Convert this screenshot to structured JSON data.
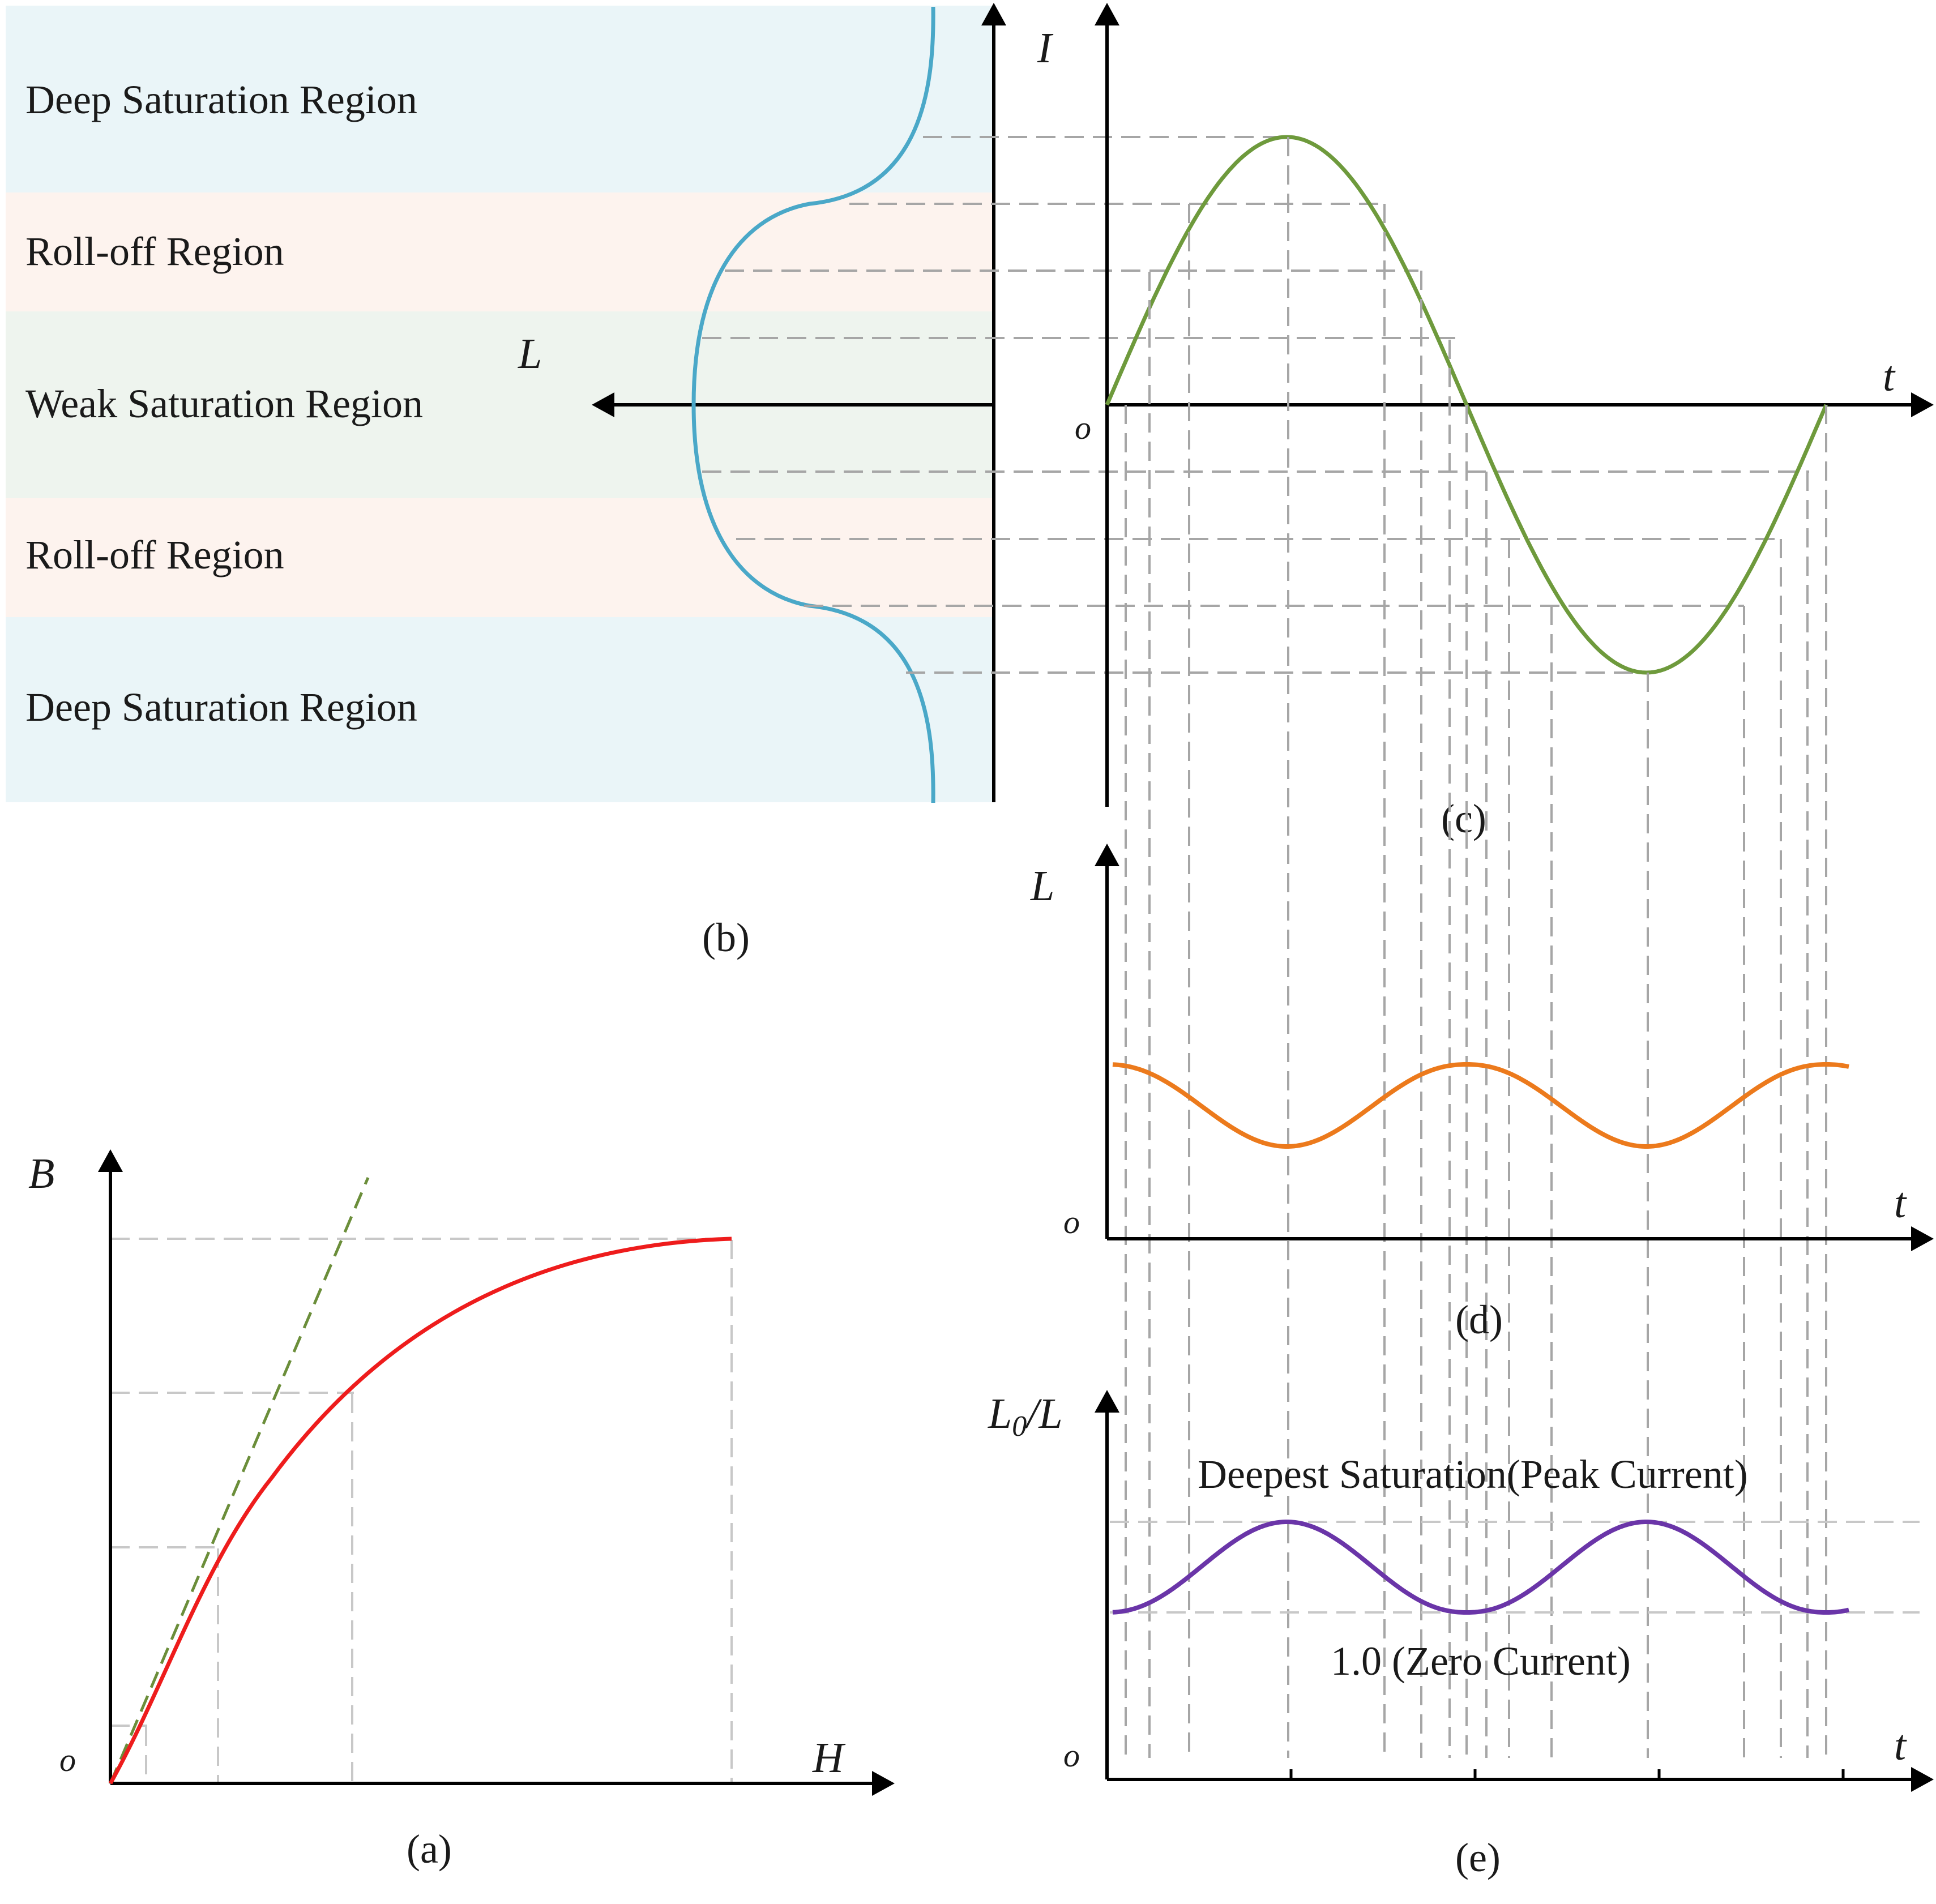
{
  "colors": {
    "deep_band": "#eaf5f8",
    "rolloff_band": "#fdf3ee",
    "weak_band": "#eef4ee",
    "bh_curve": "#ee1c1c",
    "bh_tangent": "#6b8e3a",
    "inductance_curve": "#4aa8c8",
    "current_wave": "#6e9a3c",
    "inductance_wave": "#ec7a1c",
    "ratio_wave": "#6a35a8",
    "guide_lines": "#a6a6a6"
  },
  "panel_b": {
    "regions": [
      "Deep Saturation Region",
      "Roll-off Region",
      "Weak Saturation Region",
      "Roll-off Region",
      "Deep Saturation Region"
    ],
    "axis_label": "L",
    "caption": "(b)"
  },
  "panel_a": {
    "y_label": "B",
    "x_label": "H",
    "origin": "o",
    "caption": "(a)"
  },
  "panel_c": {
    "y_label": "I",
    "x_label": "t",
    "origin": "o",
    "caption": "(c)"
  },
  "panel_d": {
    "y_label": "L",
    "x_label": "t",
    "origin": "o",
    "caption": "(d)"
  },
  "panel_e": {
    "y_label_main": "L",
    "y_label_sub": "0",
    "y_label_tail": "/L",
    "x_label": "t",
    "origin": "o",
    "caption": "(e)",
    "annotation_top": "Deepest Saturation(Peak Current)",
    "annotation_bottom": "1.0 (Zero Current)"
  }
}
